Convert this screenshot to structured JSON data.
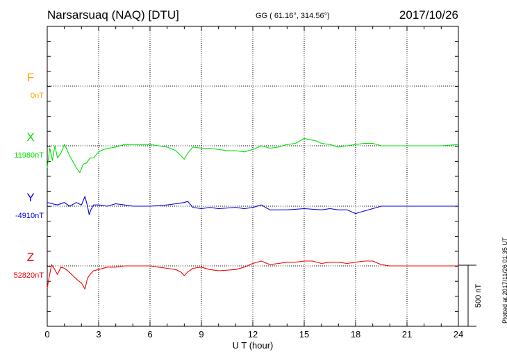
{
  "header": {
    "station": "Narsarsuaq (NAQ)  [DTU]",
    "coords": "GG ( 61.16°, 314.56°)",
    "date": "2017/10/26"
  },
  "plotted_note": "Plotted at 2017/11/26 01:35 UT",
  "chart_data": {
    "type": "line",
    "xlabel": "U T (hour)",
    "xlim": [
      0,
      24
    ],
    "xticks": [
      0,
      3,
      6,
      9,
      12,
      15,
      18,
      21,
      24
    ],
    "ylabel": "",
    "scale_bar": "500 nT",
    "scale_nT": 500,
    "colors": {
      "F": "#ffa500",
      "X": "#00e000",
      "Y": "#0000dd",
      "Z": "#ee0000"
    },
    "series": [
      {
        "name": "F",
        "baseline_label": "0nT",
        "baseline_nT": 0,
        "x": [],
        "values": []
      },
      {
        "name": "X",
        "baseline_label": "11980nT",
        "baseline_nT": 11980,
        "x": [
          0,
          0.15,
          0.3,
          0.45,
          0.6,
          0.8,
          1.0,
          1.15,
          1.3,
          1.5,
          1.7,
          1.9,
          2.1,
          2.3,
          2.5,
          2.7,
          3.0,
          3.3,
          3.6,
          4.0,
          4.5,
          5.0,
          5.5,
          6.0,
          6.5,
          7.0,
          7.5,
          7.8,
          8.0,
          8.2,
          8.5,
          9.0,
          9.5,
          10.0,
          10.5,
          11.0,
          11.5,
          12.0,
          12.5,
          13.0,
          13.5,
          14.0,
          14.5,
          15.0,
          15.3,
          15.7,
          16.0,
          16.5,
          17.0,
          17.5,
          18.0,
          18.5,
          19.0,
          19.5,
          20.0,
          21.0,
          22.0,
          23.0,
          24.0
        ],
        "values": [
          11800,
          11960,
          11860,
          11980,
          11880,
          11920,
          11990,
          11950,
          11900,
          11850,
          11800,
          11760,
          11830,
          11840,
          11880,
          11880,
          11930,
          11950,
          11960,
          11970,
          11990,
          11990,
          11990,
          11990,
          11980,
          11970,
          11940,
          11900,
          11870,
          11920,
          11970,
          11960,
          11960,
          11950,
          11940,
          11940,
          11930,
          11950,
          11980,
          11960,
          11970,
          11990,
          12000,
          12040,
          12030,
          12020,
          12000,
          11990,
          11970,
          11980,
          11990,
          12000,
          12000,
          11980,
          11980,
          11980,
          11980,
          11980,
          11990
        ]
      },
      {
        "name": "Y",
        "baseline_label": "-4910nT",
        "baseline_nT": -4910,
        "x": [
          0,
          0.3,
          0.6,
          1.0,
          1.3,
          1.7,
          2.0,
          2.2,
          2.35,
          2.45,
          2.55,
          2.7,
          3.0,
          3.5,
          4.0,
          4.5,
          5.0,
          6.0,
          7.0,
          7.5,
          8.0,
          8.2,
          8.5,
          9.0,
          9.5,
          10.0,
          11.0,
          11.5,
          12.0,
          12.5,
          13.0,
          13.5,
          14.0,
          15.0,
          16.0,
          16.5,
          17.0,
          17.5,
          18.0,
          18.5,
          19.0,
          19.5,
          20.0,
          21.0,
          22.0,
          23.0,
          24.0
        ],
        "values": [
          -4880,
          -4890,
          -4900,
          -4880,
          -4910,
          -4880,
          -4900,
          -4830,
          -4910,
          -4980,
          -4940,
          -4900,
          -4900,
          -4910,
          -4890,
          -4900,
          -4910,
          -4910,
          -4900,
          -4890,
          -4880,
          -4870,
          -4920,
          -4930,
          -4920,
          -4930,
          -4920,
          -4930,
          -4920,
          -4900,
          -4940,
          -4940,
          -4940,
          -4930,
          -4940,
          -4930,
          -4940,
          -4940,
          -4970,
          -4950,
          -4930,
          -4910,
          -4910,
          -4910,
          -4910,
          -4910,
          -4910
        ]
      },
      {
        "name": "Z",
        "baseline_label": "52820nT",
        "baseline_nT": 52820,
        "x": [
          0,
          0.1,
          0.25,
          0.4,
          0.6,
          0.8,
          1.0,
          1.2,
          1.5,
          1.8,
          2.0,
          2.2,
          2.35,
          2.5,
          2.7,
          3.0,
          3.5,
          4.0,
          4.5,
          5.0,
          6.0,
          6.5,
          7.0,
          7.5,
          7.8,
          8.0,
          8.2,
          8.5,
          9.0,
          9.5,
          10.0,
          11.0,
          11.5,
          12.0,
          12.5,
          13.0,
          13.5,
          14.0,
          14.5,
          15.0,
          15.5,
          16.0,
          16.5,
          17.0,
          17.5,
          18.0,
          18.5,
          19.0,
          19.5,
          20.0,
          21.0,
          22.0,
          23.0,
          24.0
        ],
        "values": [
          52640,
          52720,
          52830,
          52800,
          52750,
          52810,
          52800,
          52780,
          52740,
          52700,
          52680,
          52630,
          52720,
          52750,
          52780,
          52790,
          52810,
          52810,
          52820,
          52820,
          52820,
          52810,
          52800,
          52790,
          52770,
          52740,
          52770,
          52800,
          52810,
          52790,
          52780,
          52790,
          52810,
          52840,
          52860,
          52830,
          52840,
          52850,
          52850,
          52860,
          52860,
          52840,
          52850,
          52850,
          52840,
          52850,
          52860,
          52860,
          52830,
          52820,
          52820,
          52820,
          52820,
          52820
        ]
      }
    ]
  }
}
